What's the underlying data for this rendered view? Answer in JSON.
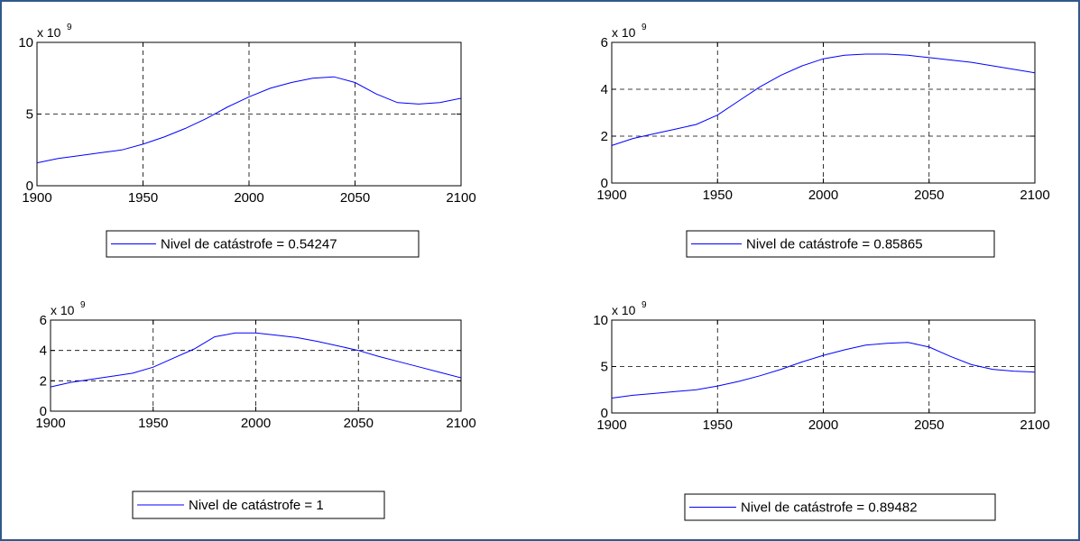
{
  "colors": {
    "line": "#0000ff",
    "grid": "#000000",
    "axes": "#000000",
    "border": "#2f5a8a"
  },
  "chart_data": [
    {
      "type": "line",
      "exponent_label": "x 10",
      "exponent": "9",
      "xlim": [
        1900,
        2100
      ],
      "ylim": [
        0,
        10
      ],
      "xticks": [
        1900,
        1950,
        2000,
        2050,
        2100
      ],
      "yticks": [
        0,
        5,
        10
      ],
      "grid": true,
      "legend": "bottom",
      "series": [
        {
          "name": "Nivel de catástrofe = 0.54247",
          "x": [
            1900,
            1910,
            1920,
            1930,
            1940,
            1950,
            1960,
            1970,
            1980,
            1990,
            2000,
            2010,
            2020,
            2030,
            2040,
            2050,
            2060,
            2070,
            2080,
            2090,
            2100
          ],
          "y": [
            1.6,
            1.9,
            2.1,
            2.3,
            2.5,
            2.9,
            3.4,
            4.0,
            4.7,
            5.5,
            6.2,
            6.8,
            7.2,
            7.5,
            7.6,
            7.2,
            6.4,
            5.8,
            5.7,
            5.8,
            6.1
          ]
        }
      ]
    },
    {
      "type": "line",
      "exponent_label": "x 10",
      "exponent": "9",
      "xlim": [
        1900,
        2100
      ],
      "ylim": [
        0,
        6
      ],
      "xticks": [
        1900,
        1950,
        2000,
        2050,
        2100
      ],
      "yticks": [
        0,
        2,
        4,
        6
      ],
      "grid": true,
      "legend": "bottom",
      "series": [
        {
          "name": "Nivel de catástrofe = 0.85865",
          "x": [
            1900,
            1910,
            1920,
            1930,
            1940,
            1950,
            1960,
            1970,
            1980,
            1990,
            2000,
            2010,
            2020,
            2030,
            2040,
            2050,
            2060,
            2070,
            2080,
            2090,
            2100
          ],
          "y": [
            1.6,
            1.9,
            2.1,
            2.3,
            2.5,
            2.9,
            3.5,
            4.1,
            4.6,
            5.0,
            5.3,
            5.45,
            5.5,
            5.5,
            5.45,
            5.35,
            5.25,
            5.15,
            5.0,
            4.85,
            4.7
          ]
        }
      ]
    },
    {
      "type": "line",
      "exponent_label": "x 10",
      "exponent": "9",
      "xlim": [
        1900,
        2100
      ],
      "ylim": [
        0,
        6
      ],
      "xticks": [
        1900,
        1950,
        2000,
        2050,
        2100
      ],
      "yticks": [
        0,
        2,
        4,
        6
      ],
      "grid": true,
      "legend": "bottom",
      "series": [
        {
          "name": "Nivel de catástrofe = 1",
          "x": [
            1900,
            1910,
            1920,
            1930,
            1940,
            1950,
            1960,
            1970,
            1980,
            1990,
            2000,
            2010,
            2020,
            2030,
            2040,
            2050,
            2060,
            2070,
            2080,
            2090,
            2100
          ],
          "y": [
            1.6,
            1.9,
            2.1,
            2.3,
            2.5,
            2.9,
            3.5,
            4.1,
            4.9,
            5.15,
            5.15,
            5.0,
            4.85,
            4.6,
            4.3,
            4.0,
            3.6,
            3.25,
            2.9,
            2.55,
            2.2
          ]
        }
      ]
    },
    {
      "type": "line",
      "exponent_label": "x 10",
      "exponent": "9",
      "xlim": [
        1900,
        2100
      ],
      "ylim": [
        0,
        10
      ],
      "xticks": [
        1900,
        1950,
        2000,
        2050,
        2100
      ],
      "yticks": [
        0,
        5,
        10
      ],
      "grid": true,
      "legend": "bottom",
      "series": [
        {
          "name": "Nivel de catástrofe = 0.89482",
          "x": [
            1900,
            1910,
            1920,
            1930,
            1940,
            1950,
            1960,
            1970,
            1980,
            1990,
            2000,
            2010,
            2020,
            2030,
            2040,
            2050,
            2060,
            2070,
            2080,
            2090,
            2100
          ],
          "y": [
            1.6,
            1.9,
            2.1,
            2.3,
            2.5,
            2.9,
            3.4,
            4.0,
            4.7,
            5.5,
            6.2,
            6.8,
            7.3,
            7.5,
            7.6,
            7.1,
            6.1,
            5.2,
            4.7,
            4.5,
            4.4
          ]
        }
      ]
    }
  ]
}
